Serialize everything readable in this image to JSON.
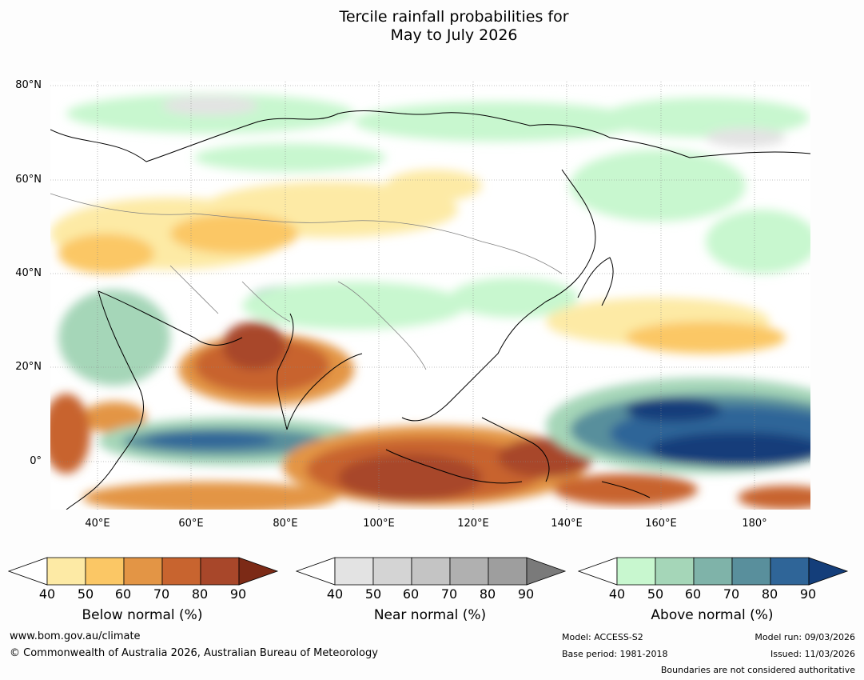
{
  "title_line1": "Tercile rainfall probabilities for",
  "title_line2": "May to July 2026",
  "map": {
    "lat_labels": [
      "80°N",
      "60°N",
      "40°N",
      "20°N",
      "0°"
    ],
    "lon_labels": [
      "40°E",
      "60°E",
      "80°E",
      "100°E",
      "120°E",
      "140°E",
      "160°E",
      "180°"
    ],
    "region": "Asia and western Pacific",
    "colors": {
      "below": [
        "#fdeaa5",
        "#fbc765",
        "#e39545",
        "#c8642f",
        "#a8472a",
        "#7c2a16"
      ],
      "near": [
        "#e3e3e3",
        "#d4d4d4",
        "#c4c4c4",
        "#b0b0b0",
        "#9e9e9e",
        "#7a7a7a"
      ],
      "above": [
        "#c8f7cf",
        "#a5d6b8",
        "#7fb3a9",
        "#598f9c",
        "#2f6598",
        "#143e7a"
      ]
    }
  },
  "legend": {
    "below": {
      "title": "Below normal (%)",
      "ticks": [
        "40",
        "50",
        "60",
        "70",
        "80",
        "90"
      ]
    },
    "near": {
      "title": "Near normal (%)",
      "ticks": [
        "40",
        "50",
        "60",
        "70",
        "80",
        "90"
      ]
    },
    "above": {
      "title": "Above normal (%)",
      "ticks": [
        "40",
        "50",
        "60",
        "70",
        "80",
        "90"
      ]
    }
  },
  "footer": {
    "website": "www.bom.gov.au/climate",
    "copyright": "© Commonwealth of Australia 2026, Australian Bureau of Meteorology",
    "model": "Model: ACCESS-S2",
    "base_period": "Base period: 1981-2018",
    "model_run": "Model run: 09/03/2026",
    "issued": "Issued: 11/03/2026",
    "boundaries": "Boundaries are not considered authoritative"
  }
}
